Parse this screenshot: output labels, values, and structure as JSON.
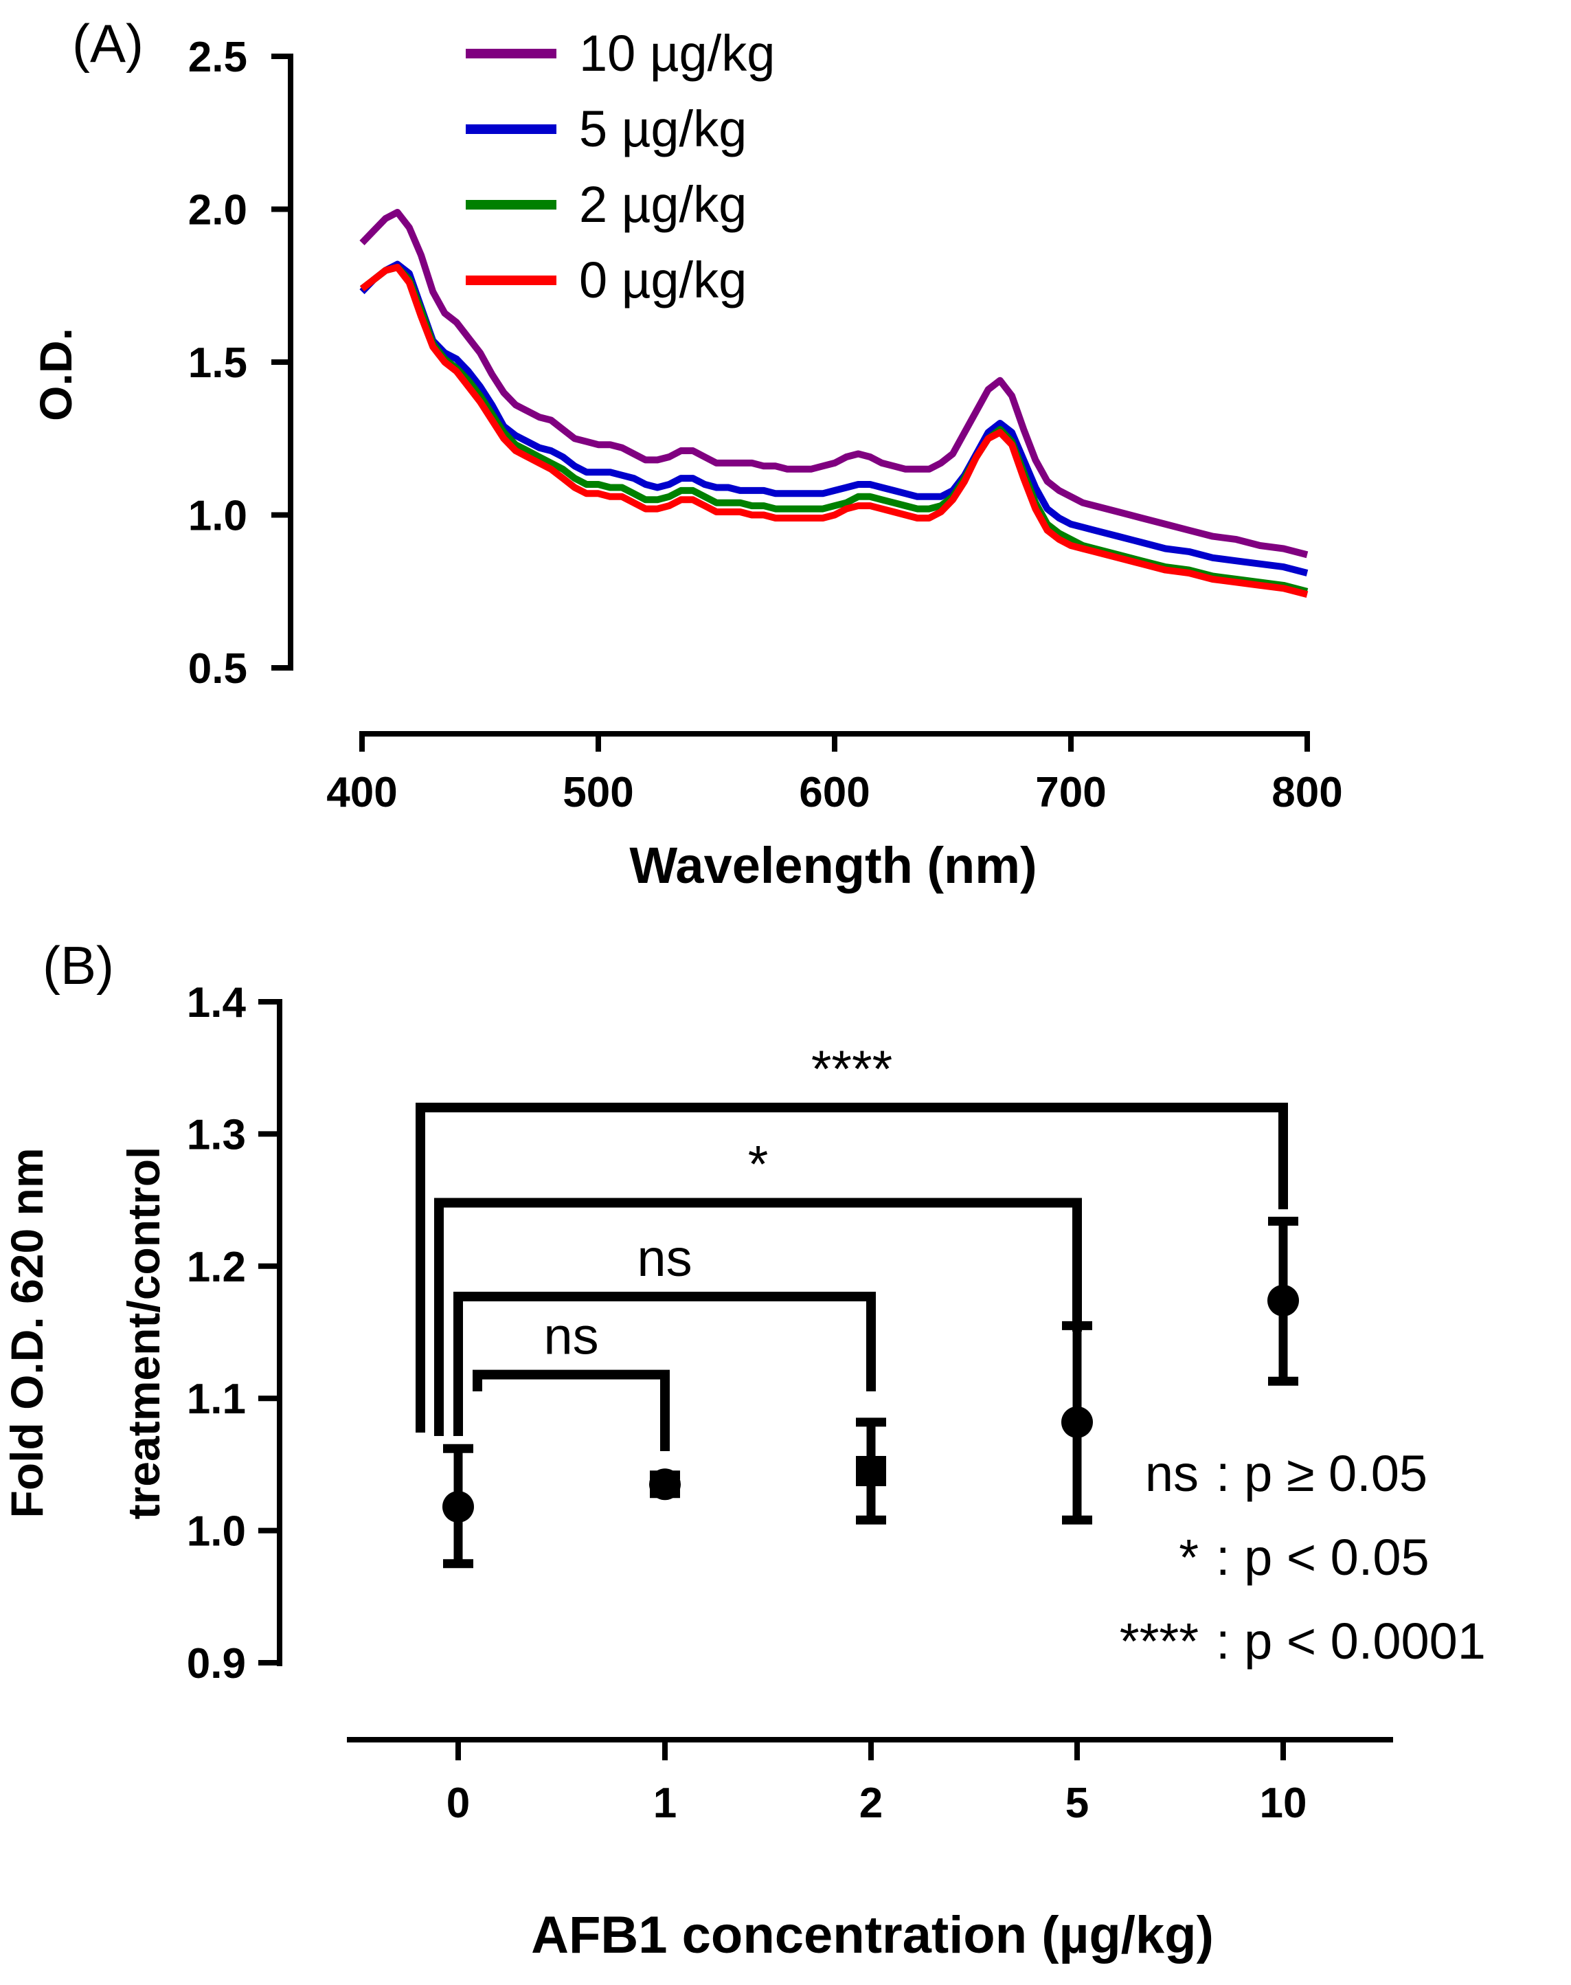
{
  "figure": {
    "panels": [
      "(A)",
      "(B)"
    ]
  },
  "chart_data": [
    {
      "panel": "(A)",
      "type": "line",
      "title": "",
      "xlabel": "Wavelength (nm)",
      "ylabel": "O.D.",
      "xlim": [
        400,
        800
      ],
      "ylim": [
        0.5,
        2.5
      ],
      "xticks": [
        "400",
        "500",
        "600",
        "700",
        "800"
      ],
      "yticks": [
        "0.5",
        "1.0",
        "1.5",
        "2.0",
        "2.5"
      ],
      "legend_position": "top",
      "x": [
        400,
        405,
        410,
        415,
        420,
        425,
        430,
        435,
        440,
        445,
        450,
        455,
        460,
        465,
        470,
        475,
        480,
        485,
        490,
        495,
        500,
        505,
        510,
        515,
        520,
        525,
        530,
        535,
        540,
        545,
        550,
        555,
        560,
        565,
        570,
        575,
        580,
        585,
        590,
        595,
        600,
        605,
        610,
        615,
        620,
        625,
        630,
        635,
        640,
        645,
        650,
        655,
        660,
        665,
        670,
        675,
        680,
        685,
        690,
        695,
        700,
        705,
        710,
        720,
        730,
        740,
        750,
        760,
        770,
        780,
        790,
        800
      ],
      "series": [
        {
          "name": "10 µg/kg",
          "color": "#800080",
          "values": [
            1.89,
            1.93,
            1.97,
            1.99,
            1.94,
            1.85,
            1.73,
            1.66,
            1.63,
            1.58,
            1.53,
            1.46,
            1.4,
            1.36,
            1.34,
            1.32,
            1.31,
            1.28,
            1.25,
            1.24,
            1.23,
            1.23,
            1.22,
            1.2,
            1.18,
            1.18,
            1.19,
            1.21,
            1.21,
            1.19,
            1.17,
            1.17,
            1.17,
            1.17,
            1.16,
            1.16,
            1.15,
            1.15,
            1.15,
            1.16,
            1.17,
            1.19,
            1.2,
            1.19,
            1.17,
            1.16,
            1.15,
            1.15,
            1.15,
            1.17,
            1.2,
            1.27,
            1.34,
            1.41,
            1.44,
            1.39,
            1.28,
            1.18,
            1.11,
            1.08,
            1.06,
            1.04,
            1.03,
            1.01,
            0.99,
            0.97,
            0.95,
            0.93,
            0.92,
            0.9,
            0.89,
            0.87
          ]
        },
        {
          "name": "5 µg/kg",
          "color": "#0000cc",
          "values": [
            1.73,
            1.77,
            1.8,
            1.82,
            1.79,
            1.68,
            1.57,
            1.53,
            1.51,
            1.47,
            1.42,
            1.36,
            1.29,
            1.26,
            1.24,
            1.22,
            1.21,
            1.19,
            1.16,
            1.14,
            1.14,
            1.14,
            1.13,
            1.12,
            1.1,
            1.09,
            1.1,
            1.12,
            1.12,
            1.1,
            1.09,
            1.09,
            1.08,
            1.08,
            1.08,
            1.07,
            1.07,
            1.07,
            1.07,
            1.07,
            1.08,
            1.09,
            1.1,
            1.1,
            1.09,
            1.08,
            1.07,
            1.06,
            1.06,
            1.06,
            1.08,
            1.13,
            1.2,
            1.27,
            1.3,
            1.27,
            1.18,
            1.09,
            1.02,
            0.99,
            0.97,
            0.96,
            0.95,
            0.93,
            0.91,
            0.89,
            0.88,
            0.86,
            0.85,
            0.84,
            0.83,
            0.81
          ]
        },
        {
          "name": "2 µg/kg",
          "color": "#008000",
          "values": [
            1.74,
            1.77,
            1.8,
            1.81,
            1.77,
            1.67,
            1.56,
            1.51,
            1.48,
            1.44,
            1.39,
            1.33,
            1.27,
            1.23,
            1.21,
            1.19,
            1.17,
            1.15,
            1.12,
            1.1,
            1.1,
            1.09,
            1.09,
            1.07,
            1.05,
            1.05,
            1.06,
            1.08,
            1.08,
            1.06,
            1.04,
            1.04,
            1.04,
            1.03,
            1.03,
            1.02,
            1.02,
            1.02,
            1.02,
            1.02,
            1.03,
            1.04,
            1.06,
            1.06,
            1.05,
            1.04,
            1.03,
            1.02,
            1.02,
            1.03,
            1.06,
            1.12,
            1.19,
            1.25,
            1.28,
            1.24,
            1.14,
            1.04,
            0.97,
            0.94,
            0.92,
            0.9,
            0.89,
            0.87,
            0.85,
            0.83,
            0.82,
            0.8,
            0.79,
            0.78,
            0.77,
            0.75
          ]
        },
        {
          "name": "0 µg/kg",
          "color": "#ff0000",
          "values": [
            1.74,
            1.77,
            1.8,
            1.81,
            1.76,
            1.65,
            1.55,
            1.5,
            1.47,
            1.42,
            1.37,
            1.31,
            1.25,
            1.21,
            1.19,
            1.17,
            1.15,
            1.12,
            1.09,
            1.07,
            1.07,
            1.06,
            1.06,
            1.04,
            1.02,
            1.02,
            1.03,
            1.05,
            1.05,
            1.03,
            1.01,
            1.01,
            1.01,
            1.0,
            1.0,
            0.99,
            0.99,
            0.99,
            0.99,
            0.99,
            1.0,
            1.02,
            1.03,
            1.03,
            1.02,
            1.01,
            1.0,
            0.99,
            0.99,
            1.01,
            1.05,
            1.11,
            1.19,
            1.25,
            1.27,
            1.23,
            1.12,
            1.02,
            0.95,
            0.92,
            0.9,
            0.89,
            0.88,
            0.86,
            0.84,
            0.82,
            0.81,
            0.79,
            0.78,
            0.77,
            0.76,
            0.74
          ]
        }
      ]
    },
    {
      "panel": "(B)",
      "type": "scatter",
      "title": "",
      "xlabel": "AFB1 concentration (µg/kg)",
      "ylabel_line1": "Fold O.D. 620 nm",
      "ylabel_line2": "treatment/control",
      "ylim": [
        0.9,
        1.4
      ],
      "yticks": [
        "0.9",
        "1.0",
        "1.1",
        "1.2",
        "1.3",
        "1.4"
      ],
      "categories": [
        "0",
        "1",
        "2",
        "5",
        "10"
      ],
      "points": [
        {
          "x": "0",
          "mean": 1.018,
          "lower": 0.975,
          "upper": 1.062,
          "marker": "circle"
        },
        {
          "x": "1",
          "mean": 1.035,
          "lower": 1.028,
          "upper": 1.042,
          "marker": "circle"
        },
        {
          "x": "2",
          "mean": 1.045,
          "lower": 1.008,
          "upper": 1.082,
          "marker": "square"
        },
        {
          "x": "5",
          "mean": 1.082,
          "lower": 1.008,
          "upper": 1.155,
          "marker": "circle"
        },
        {
          "x": "10",
          "mean": 1.174,
          "lower": 1.113,
          "upper": 1.234,
          "marker": "circle"
        }
      ],
      "comparisons": [
        {
          "from": "0",
          "to": "1",
          "label": "ns",
          "level": 1.118
        },
        {
          "from": "0",
          "to": "2",
          "label": "ns",
          "level": 1.177
        },
        {
          "from": "0",
          "to": "5",
          "label": "*",
          "level": 1.248
        },
        {
          "from": "0",
          "to": "10",
          "label": "****",
          "level": 1.32
        }
      ],
      "significance_key": [
        {
          "symbol": "ns",
          "text": ": p ≥ 0.05"
        },
        {
          "symbol": "*",
          "text": ": p < 0.05"
        },
        {
          "symbol": "****",
          "text": ": p < 0.0001"
        }
      ]
    }
  ]
}
